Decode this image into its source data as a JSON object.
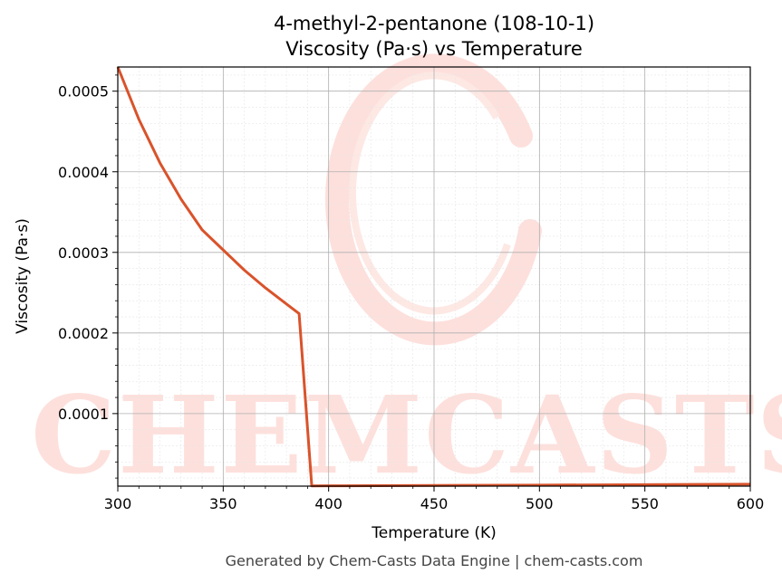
{
  "chart_data": {
    "type": "line",
    "title": "4-methyl-2-pentanone (108-10-1)",
    "subtitle": "Viscosity (Pa·s) vs Temperature",
    "xlabel": "Temperature (K)",
    "ylabel": "Viscosity (Pa·s)",
    "xlim": [
      300,
      600
    ],
    "ylim": [
      1e-05,
      0.00053
    ],
    "x_ticks": [
      300,
      350,
      400,
      450,
      500,
      550,
      600
    ],
    "x_tick_labels": [
      "300",
      "350",
      "400",
      "450",
      "500",
      "550",
      "600"
    ],
    "y_ticks": [
      0.0001,
      0.0002,
      0.0003,
      0.0004,
      0.0005
    ],
    "y_tick_labels": [
      "0.0001",
      "0.0002",
      "0.0003",
      "0.0004",
      "0.0005"
    ],
    "grid": true,
    "series": [
      {
        "color": "#d9532b",
        "x": [
          300,
          310,
          320,
          330,
          340,
          350,
          360,
          370,
          380,
          386,
          392,
          400,
          450,
          500,
          550,
          600
        ],
        "y": [
          0.00053,
          0.000465,
          0.000411,
          0.000366,
          0.000328,
          0.000303,
          0.000278,
          0.000256,
          0.000236,
          0.000224,
          1.03e-05,
          1.04e-05,
          1.08e-05,
          1.13e-05,
          1.18e-05,
          1.24e-05
        ]
      }
    ]
  },
  "watermark": {
    "text": "CHEMCASTS",
    "color": "#fde0dc"
  },
  "footer": "Generated by Chem-Casts Data Engine | chem-casts.com"
}
